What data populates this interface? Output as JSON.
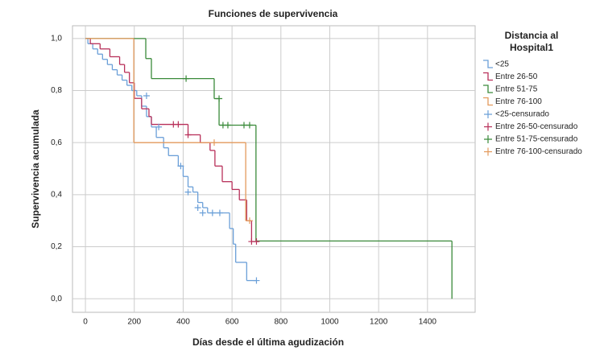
{
  "chart_data": {
    "type": "survival",
    "title": "Funciones de supervivencia",
    "x_label": "Días desde el última agudización",
    "y_label": "Supervivencia acumulada",
    "legend_title": [
      "Distancia al",
      "Hospital1"
    ],
    "legend": "right",
    "grid": true,
    "xlim": [
      -53,
      1595
    ],
    "ylim": [
      -0.052,
      1.049
    ],
    "xticks": [
      0,
      200,
      400,
      600,
      800,
      1000,
      1200,
      1400
    ],
    "yticks": [
      {
        "value": 0,
        "label": "0,0"
      },
      {
        "value": 0.2,
        "label": "0,2"
      },
      {
        "value": 0.4,
        "label": "0,4"
      },
      {
        "value": 0.6,
        "label": "0,6"
      },
      {
        "value": 0.8,
        "label": "0,8"
      },
      {
        "value": 1.0,
        "label": "1,0"
      }
    ],
    "series": [
      {
        "name": "<25",
        "color": "#6a9fd8",
        "marker": "step",
        "x": [
          0,
          10,
          30,
          50,
          70,
          90,
          110,
          130,
          150,
          170,
          190,
          210,
          230,
          250,
          270,
          290,
          320,
          340,
          380,
          400,
          420,
          440,
          460,
          480,
          500,
          590,
          605,
          615,
          660,
          700
        ],
        "values": [
          1.0,
          0.98,
          0.96,
          0.94,
          0.92,
          0.9,
          0.88,
          0.86,
          0.84,
          0.82,
          0.8,
          0.78,
          0.74,
          0.7,
          0.66,
          0.62,
          0.58,
          0.55,
          0.51,
          0.47,
          0.43,
          0.41,
          0.37,
          0.35,
          0.33,
          0.27,
          0.21,
          0.14,
          0.07,
          0.07
        ]
      },
      {
        "name": "Entre 26-50",
        "color": "#b8305a",
        "marker": "step",
        "x": [
          0,
          20,
          60,
          100,
          140,
          160,
          180,
          200,
          230,
          260,
          270,
          420,
          470,
          510,
          530,
          560,
          600,
          630,
          660,
          680,
          710
        ],
        "values": [
          1.0,
          0.98,
          0.96,
          0.93,
          0.9,
          0.87,
          0.83,
          0.77,
          0.73,
          0.7,
          0.67,
          0.63,
          0.6,
          0.57,
          0.51,
          0.45,
          0.42,
          0.38,
          0.3,
          0.22,
          0.22
        ]
      },
      {
        "name": "Entre 51-75",
        "color": "#3a8a3a",
        "marker": "step",
        "x": [
          0,
          247,
          270,
          527,
          547,
          698,
          1500
        ],
        "values": [
          1.0,
          0.923,
          0.846,
          0.769,
          0.667,
          0.222,
          0.0
        ]
      },
      {
        "name": "Entre 76-100",
        "color": "#e39a5c",
        "marker": "step",
        "x": [
          0,
          198,
          656,
          672
        ],
        "values": [
          1.0,
          0.6,
          0.3,
          0.3
        ]
      },
      {
        "name": "<25-censurado",
        "color": "#6a9fd8",
        "marker": "plus",
        "x": [
          250,
          300,
          390,
          420,
          460,
          480,
          520,
          550,
          700
        ],
        "values": [
          0.78,
          0.66,
          0.51,
          0.41,
          0.35,
          0.33,
          0.33,
          0.33,
          0.07
        ]
      },
      {
        "name": "Entre 26-50-censurado",
        "color": "#b8305a",
        "marker": "plus",
        "x": [
          360,
          380,
          420,
          680,
          700
        ],
        "values": [
          0.67,
          0.67,
          0.63,
          0.22,
          0.22
        ]
      },
      {
        "name": "Entre 51-75-censurado",
        "color": "#3a8a3a",
        "marker": "plus",
        "x": [
          412,
          547,
          563,
          583,
          649,
          672
        ],
        "values": [
          0.846,
          0.769,
          0.667,
          0.667,
          0.667,
          0.667
        ]
      },
      {
        "name": "Entre 76-100-censurado",
        "color": "#e39a5c",
        "marker": "plus",
        "x": [
          527,
          672
        ],
        "values": [
          0.6,
          0.3
        ]
      }
    ]
  }
}
